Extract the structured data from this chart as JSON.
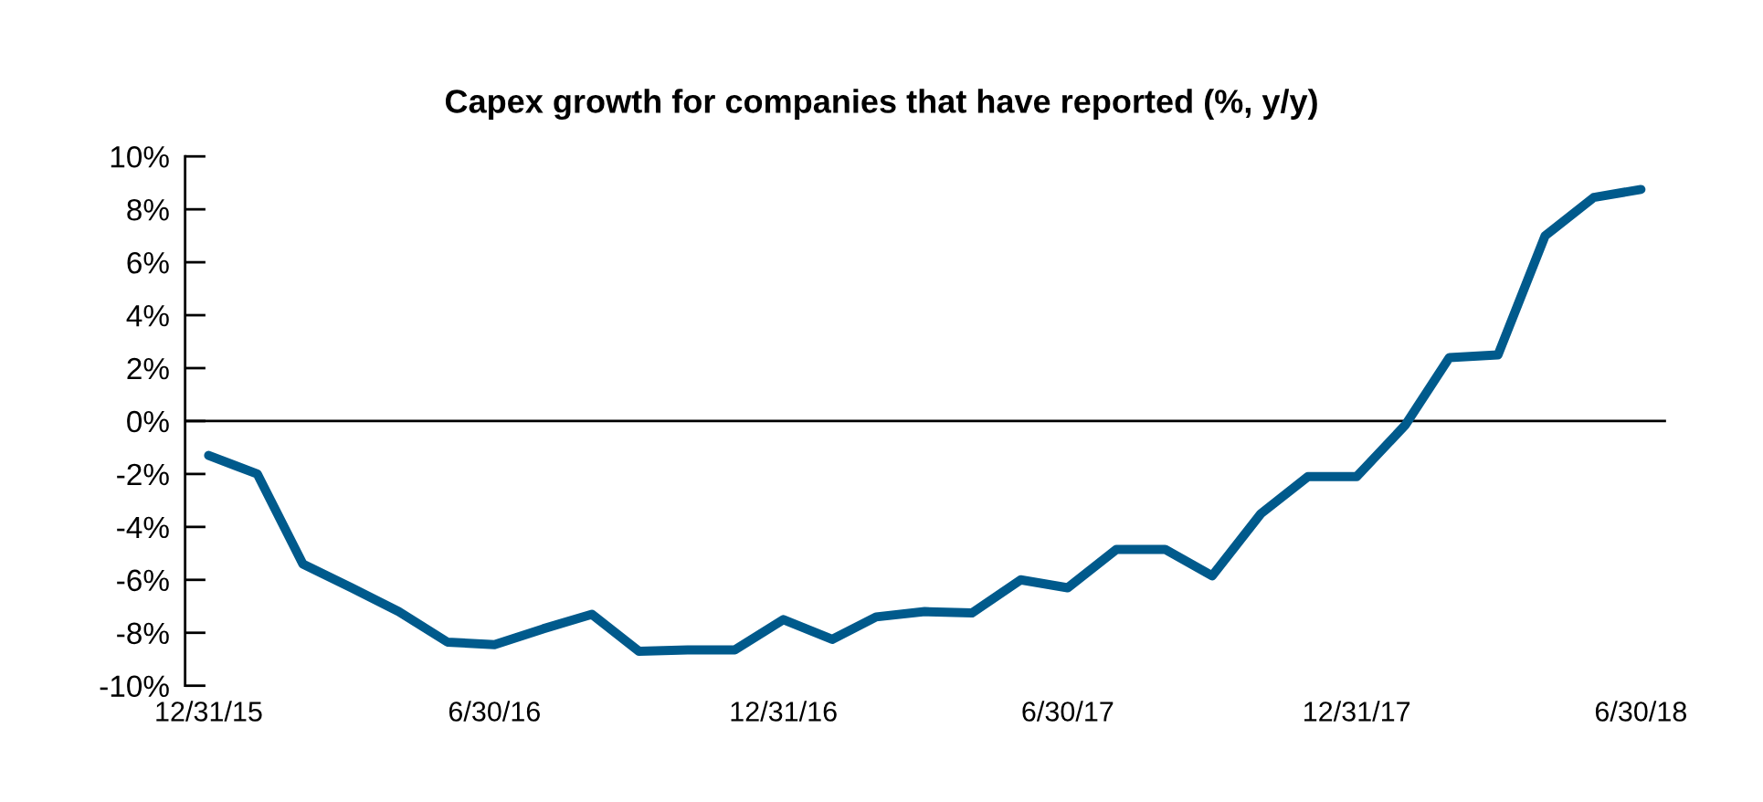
{
  "chart_data": {
    "type": "line",
    "title": "Capex growth for companies that have reported (%, y/y)",
    "x": [
      "2015-12-31",
      "2016-01-31",
      "2016-02-29",
      "2016-03-31",
      "2016-04-30",
      "2016-05-31",
      "2016-06-30",
      "2016-07-31",
      "2016-08-31",
      "2016-09-30",
      "2016-10-31",
      "2016-11-30",
      "2016-12-31",
      "2017-01-31",
      "2017-02-28",
      "2017-03-31",
      "2017-04-30",
      "2017-05-31",
      "2017-06-30",
      "2017-07-31",
      "2017-08-31",
      "2017-09-30",
      "2017-10-31",
      "2017-11-30",
      "2017-12-31",
      "2018-01-31",
      "2018-02-28",
      "2018-03-31",
      "2018-04-30",
      "2018-05-31",
      "2018-06-30"
    ],
    "series": [
      {
        "color": "#005a8c",
        "values": [
          -1.3,
          -2.0,
          -5.4,
          -6.3,
          -7.2,
          -8.35,
          -8.45,
          -7.85,
          -7.3,
          -8.7,
          -8.65,
          -8.65,
          -7.5,
          -8.25,
          -7.4,
          -7.2,
          -7.25,
          -6.0,
          -6.3,
          -4.85,
          -4.85,
          -5.85,
          -3.5,
          -2.1,
          -2.1,
          -0.15,
          2.4,
          2.5,
          7.0,
          8.45,
          8.75
        ]
      }
    ],
    "xlim": [
      "2015-12-16",
      "2018-07-16"
    ],
    "xticks": [
      {
        "value": "2015-12-31",
        "label": "12/31/15"
      },
      {
        "value": "2016-06-30",
        "label": "6/30/16"
      },
      {
        "value": "2016-12-31",
        "label": "12/31/16"
      },
      {
        "value": "2017-06-30",
        "label": "6/30/17"
      },
      {
        "value": "2017-12-31",
        "label": "12/31/17"
      },
      {
        "value": "2018-06-30",
        "label": "6/30/18"
      }
    ],
    "ylim": [
      -10,
      10
    ],
    "yticks": [
      {
        "value": -10,
        "label": "-10%"
      },
      {
        "value": -8,
        "label": "-8%"
      },
      {
        "value": -6,
        "label": "-6%"
      },
      {
        "value": -4,
        "label": "-4%"
      },
      {
        "value": -2,
        "label": "-2%"
      },
      {
        "value": 0,
        "label": "0%"
      },
      {
        "value": 2,
        "label": "2%"
      },
      {
        "value": 4,
        "label": "4%"
      },
      {
        "value": 6,
        "label": "6%"
      },
      {
        "value": 8,
        "label": "8%"
      },
      {
        "value": 10,
        "label": "10%"
      }
    ],
    "ref_lines": [
      {
        "axis": "y",
        "value": 0,
        "color": "#000000"
      }
    ],
    "grid": false,
    "legend": false,
    "marker": "none",
    "line_style": "solid"
  }
}
